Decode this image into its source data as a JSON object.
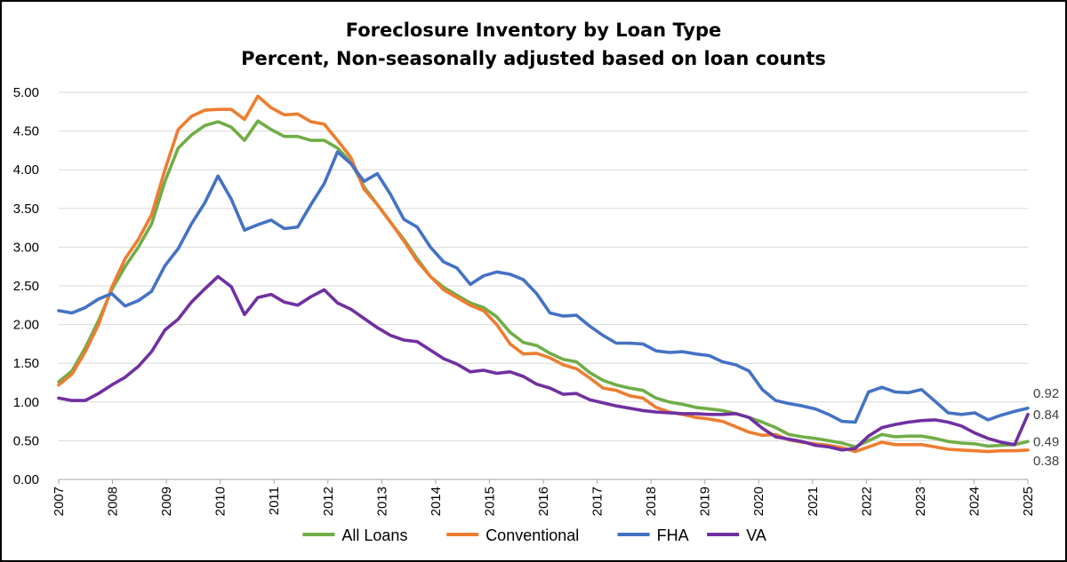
{
  "chart_data": {
    "type": "line",
    "title": "Foreclosure Inventory by Loan Type",
    "subtitle": "Percent, Non-seasonally adjusted based on loan counts",
    "xlabel": "",
    "ylabel": "",
    "xlim": [
      2007,
      2025
    ],
    "ylim": [
      0,
      5
    ],
    "yticks": [
      "0.00",
      "0.50",
      "1.00",
      "1.50",
      "2.00",
      "2.50",
      "3.00",
      "3.50",
      "4.00",
      "4.50",
      "5.00"
    ],
    "xticks": [
      "2007",
      "2008",
      "2009",
      "2010",
      "2011",
      "2012",
      "2013",
      "2014",
      "2015",
      "2016",
      "2017",
      "2018",
      "2019",
      "2020",
      "2021",
      "2022",
      "2023",
      "2024",
      "2025"
    ],
    "grid": "horizontal",
    "legend_position": "bottom",
    "end_labels": [
      "0.92",
      "0.84",
      "0.49",
      "0.38"
    ],
    "series": [
      {
        "name": "All Loans",
        "color": "#70ad47",
        "values": [
          1.26,
          1.4,
          1.7,
          2.05,
          2.45,
          2.75,
          3.0,
          3.3,
          3.85,
          4.28,
          4.45,
          4.57,
          4.62,
          4.55,
          4.38,
          4.63,
          4.52,
          4.43,
          4.43,
          4.38,
          4.38,
          4.28,
          4.1,
          3.78,
          3.55,
          3.32,
          3.1,
          2.85,
          2.62,
          2.48,
          2.38,
          2.28,
          2.22,
          2.1,
          1.9,
          1.77,
          1.73,
          1.63,
          1.55,
          1.52,
          1.38,
          1.28,
          1.22,
          1.18,
          1.15,
          1.05,
          1.0,
          0.97,
          0.93,
          0.91,
          0.89,
          0.85,
          0.8,
          0.74,
          0.67,
          0.58,
          0.55,
          0.53,
          0.5,
          0.47,
          0.42,
          0.5,
          0.58,
          0.55,
          0.56,
          0.56,
          0.53,
          0.49,
          0.47,
          0.46,
          0.43,
          0.44,
          0.45,
          0.49
        ]
      },
      {
        "name": "Conventional",
        "color": "#ed7d31",
        "values": [
          1.22,
          1.36,
          1.65,
          2.0,
          2.48,
          2.85,
          3.1,
          3.42,
          4.0,
          4.52,
          4.69,
          4.77,
          4.78,
          4.78,
          4.65,
          4.95,
          4.8,
          4.71,
          4.72,
          4.62,
          4.59,
          4.38,
          4.16,
          3.75,
          3.55,
          3.32,
          3.08,
          2.82,
          2.62,
          2.45,
          2.35,
          2.25,
          2.18,
          2.0,
          1.75,
          1.62,
          1.63,
          1.57,
          1.48,
          1.43,
          1.31,
          1.18,
          1.15,
          1.08,
          1.05,
          0.93,
          0.87,
          0.84,
          0.8,
          0.78,
          0.75,
          0.68,
          0.61,
          0.57,
          0.58,
          0.51,
          0.48,
          0.46,
          0.44,
          0.41,
          0.36,
          0.42,
          0.48,
          0.45,
          0.45,
          0.45,
          0.42,
          0.39,
          0.38,
          0.37,
          0.36,
          0.37,
          0.37,
          0.38
        ]
      },
      {
        "name": "FHA",
        "color": "#4472c4",
        "values": [
          2.18,
          2.15,
          2.22,
          2.33,
          2.4,
          2.24,
          2.31,
          2.43,
          2.76,
          2.98,
          3.3,
          3.57,
          3.92,
          3.62,
          3.22,
          3.29,
          3.35,
          3.24,
          3.26,
          3.55,
          3.82,
          4.23,
          4.08,
          3.85,
          3.95,
          3.68,
          3.36,
          3.26,
          3.0,
          2.81,
          2.73,
          2.52,
          2.63,
          2.68,
          2.65,
          2.58,
          2.4,
          2.15,
          2.11,
          2.12,
          1.98,
          1.86,
          1.76,
          1.76,
          1.75,
          1.66,
          1.64,
          1.65,
          1.62,
          1.6,
          1.52,
          1.48,
          1.4,
          1.16,
          1.02,
          0.98,
          0.95,
          0.91,
          0.84,
          0.75,
          0.74,
          1.13,
          1.19,
          1.13,
          1.12,
          1.16,
          1.01,
          0.86,
          0.84,
          0.86,
          0.77,
          0.83,
          0.88,
          0.92
        ]
      },
      {
        "name": "VA",
        "color": "#7030a0",
        "values": [
          1.05,
          1.02,
          1.02,
          1.11,
          1.22,
          1.32,
          1.46,
          1.65,
          1.93,
          2.07,
          2.29,
          2.46,
          2.62,
          2.49,
          2.13,
          2.35,
          2.39,
          2.29,
          2.25,
          2.36,
          2.45,
          2.28,
          2.2,
          2.08,
          1.96,
          1.86,
          1.8,
          1.78,
          1.67,
          1.56,
          1.49,
          1.39,
          1.41,
          1.37,
          1.39,
          1.33,
          1.23,
          1.18,
          1.1,
          1.11,
          1.03,
          0.99,
          0.95,
          0.92,
          0.89,
          0.87,
          0.86,
          0.85,
          0.85,
          0.84,
          0.84,
          0.85,
          0.8,
          0.66,
          0.55,
          0.52,
          0.49,
          0.44,
          0.42,
          0.38,
          0.4,
          0.56,
          0.67,
          0.71,
          0.74,
          0.76,
          0.77,
          0.74,
          0.69,
          0.6,
          0.53,
          0.48,
          0.45,
          0.84
        ]
      }
    ]
  }
}
